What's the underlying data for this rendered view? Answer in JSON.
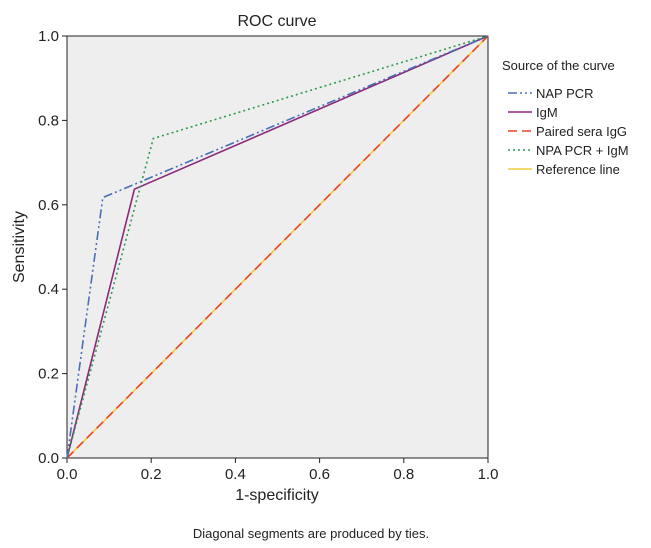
{
  "chart_data": {
    "type": "line",
    "title": "ROC curve",
    "xlabel": "1-specificity",
    "ylabel": "Sensitivity",
    "xlim": [
      0.0,
      1.0
    ],
    "ylim": [
      0.0,
      1.0
    ],
    "x_ticks": [
      "0.0",
      "0.2",
      "0.4",
      "0.6",
      "0.8",
      "1.0"
    ],
    "y_ticks": [
      "0.0",
      "0.2",
      "0.4",
      "0.6",
      "0.8",
      "1.0"
    ],
    "grid": false,
    "background": "#eeeeee",
    "legend_title": "Source of the curve",
    "legend_position": "right",
    "footnote": "Diagonal segments are produced by ties.",
    "series": [
      {
        "name": "NAP PCR",
        "color": "#4a6fb5",
        "style": "dash-dot-dot",
        "points": [
          [
            0.0,
            0.0
          ],
          [
            0.085,
            0.617
          ],
          [
            1.0,
            1.0
          ]
        ]
      },
      {
        "name": "IgM",
        "color": "#8b2a7a",
        "style": "solid",
        "points": [
          [
            0.0,
            0.0
          ],
          [
            0.16,
            0.637
          ],
          [
            1.0,
            1.0
          ]
        ]
      },
      {
        "name": "Paired sera IgG",
        "color": "#e8432e",
        "style": "dashed",
        "points": [
          [
            0.0,
            0.0
          ],
          [
            1.0,
            1.0
          ]
        ]
      },
      {
        "name": "NPA PCR + IgM",
        "color": "#2e9a4e",
        "style": "dotted",
        "points": [
          [
            0.0,
            0.0
          ],
          [
            0.205,
            0.757
          ],
          [
            1.0,
            1.0
          ]
        ]
      },
      {
        "name": "Reference line",
        "color": "#f2cc3c",
        "style": "solid",
        "points": [
          [
            0.0,
            0.0
          ],
          [
            1.0,
            1.0
          ]
        ]
      }
    ]
  }
}
